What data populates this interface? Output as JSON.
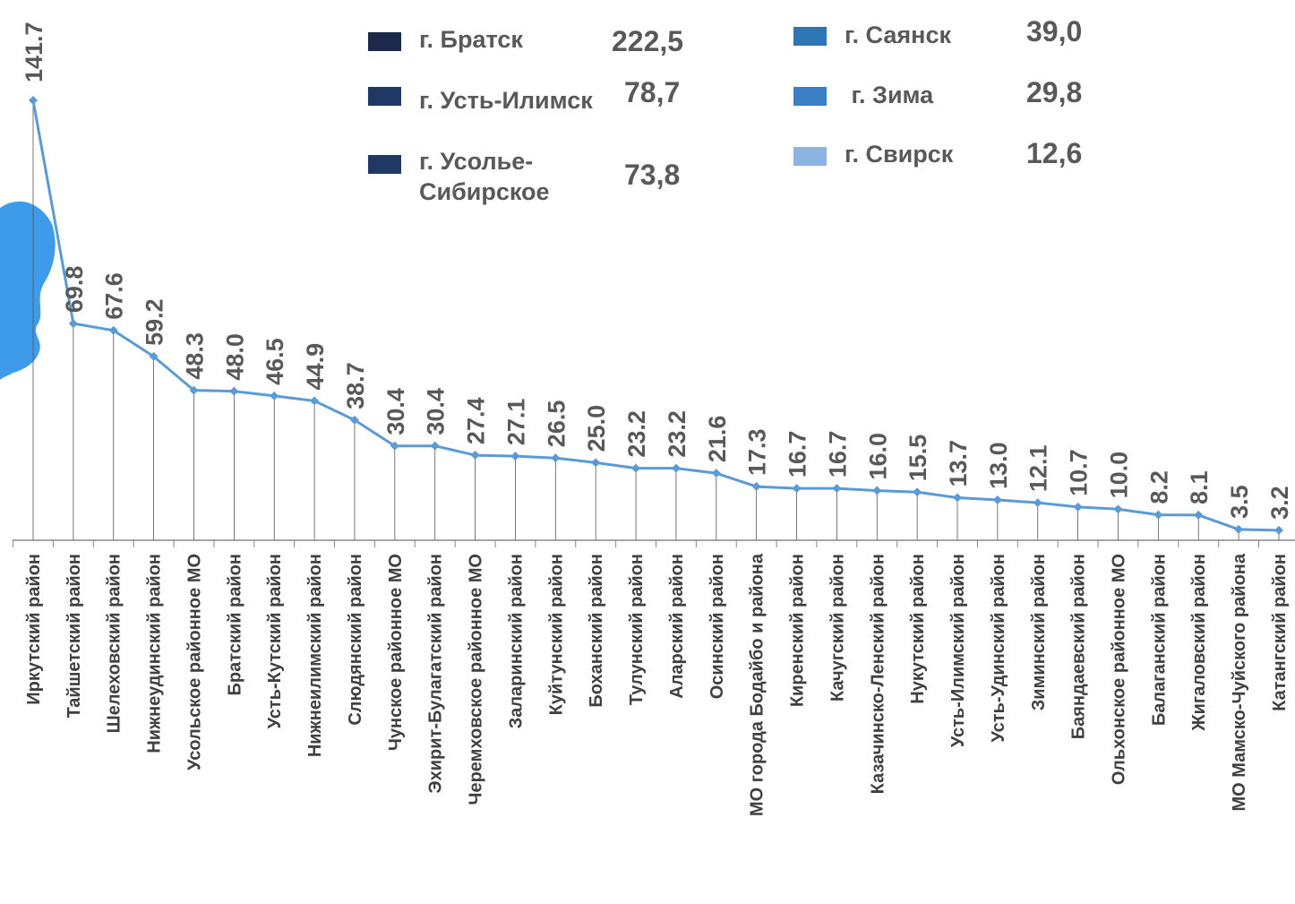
{
  "chart_data": {
    "type": "line",
    "categories": [
      "Иркутский  район",
      "Тайшетский  район",
      "Шелеховский  район",
      "Нижнеудинский  район",
      "Усольское районное МО",
      "Братский  район",
      "Усть-Кутский  район",
      "Нижнеилимский район",
      "Слюдянский  район",
      "Чунское районное МО",
      "Эхирит-Булагатский  район",
      "Черемховское районное МО",
      "Заларинский  район",
      "Куйтунский  район",
      "Боханский район",
      "Тулунский район",
      "Аларский район",
      "Осинский район",
      "МО города Бодайбо и района",
      "Киренский  район",
      "Качугский  район",
      "Казачинско-Ленский район",
      "Нукутский район",
      "Усть-Илимский  район",
      "Усть-Удинский район",
      "Зиминский  район",
      "Баяндаевский  район",
      "Ольхонское районное МО",
      "Балаганский  район",
      "Жигаловский  район",
      "МО Мамско-Чуйского района",
      "Катангский  район"
    ],
    "values": [
      141.7,
      69.8,
      67.6,
      59.2,
      48.3,
      48.0,
      46.5,
      44.9,
      38.7,
      30.4,
      30.4,
      27.4,
      27.1,
      26.5,
      25.0,
      23.2,
      23.2,
      21.6,
      17.3,
      16.7,
      16.7,
      16.0,
      15.5,
      13.7,
      13.0,
      12.1,
      10.7,
      10.0,
      8.2,
      8.1,
      3.5,
      3.2
    ],
    "value_labels": [
      "141.7",
      "69.8",
      "67.6",
      "59.2",
      "48.3",
      "48.0",
      "46.5",
      "44.9",
      "38.7",
      "30.4",
      "30.4",
      "27.4",
      "27.1",
      "26.5",
      "25.0",
      "23.2",
      "23.2",
      "21.6",
      "17.3",
      "16.7",
      "16.7",
      "16.0",
      "15.5",
      "13.7",
      "13.0",
      "12.1",
      "10.7",
      "10.0",
      "8.2",
      "8.1",
      "3.5",
      "3.2"
    ],
    "ylim": [
      0,
      145
    ],
    "line_color": "#5b9bd5",
    "grid": false
  },
  "legend": {
    "left": [
      {
        "label": "г. Братск",
        "value": "222,5",
        "color": "#1b2a4a"
      },
      {
        "label": "г. Усть-Илимск",
        "value": "78,7",
        "color": "#1f3864"
      },
      {
        "label": "г. Усолье-\nСибирское",
        "value": "73,8",
        "color": "#203864"
      }
    ],
    "right": [
      {
        "label": "г. Саянск",
        "value": "39,0",
        "color": "#2e75b6"
      },
      {
        "label": " г. Зима",
        "value": "29,8",
        "color": "#3a7fc6"
      },
      {
        "label": "г. Свирск",
        "value": "12,6",
        "color": "#8db3e2"
      }
    ]
  },
  "map_shape_color": "#3d9be9"
}
